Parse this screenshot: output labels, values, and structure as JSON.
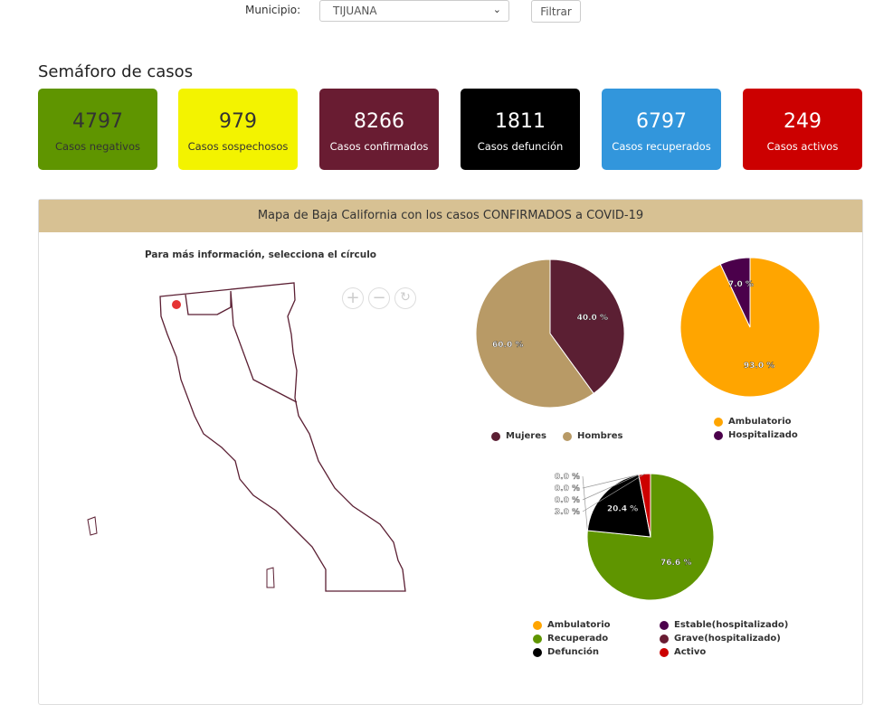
{
  "filter": {
    "label": "Municipio:",
    "value": "TIJUANA",
    "button": "Filtrar"
  },
  "section_title": "Semáforo de casos",
  "cards": [
    {
      "value": "4797",
      "label": "Casos negativos",
      "bg": "#5f9500",
      "fg": "#333"
    },
    {
      "value": "979",
      "label": "Casos sospechosos",
      "bg": "#f3f300",
      "fg": "#333"
    },
    {
      "value": "8266",
      "label": "Casos confirmados",
      "bg": "#691c32",
      "fg": "#fff"
    },
    {
      "value": "1811",
      "label": "Casos defunción",
      "bg": "#000000",
      "fg": "#fff"
    },
    {
      "value": "6797",
      "label": "Casos recuperados",
      "bg": "#3296dc",
      "fg": "#fff"
    },
    {
      "value": "249",
      "label": "Casos activos",
      "bg": "#cc0000",
      "fg": "#fff"
    }
  ],
  "panel": {
    "title": "Mapa de Baja California con los casos CONFIRMADOS a COVID-19",
    "hint": "Para más información, selecciona el círculo"
  },
  "chart_data": [
    {
      "type": "pie",
      "series": [
        {
          "name": "Mujeres",
          "value": 40.0,
          "color": "#5b1f33"
        },
        {
          "name": "Hombres",
          "value": 60.0,
          "color": "#b89a66"
        }
      ]
    },
    {
      "type": "pie",
      "series": [
        {
          "name": "Ambulatorio",
          "value": 93.0,
          "color": "#ffa500"
        },
        {
          "name": "Hospitalizado",
          "value": 7.0,
          "color": "#4b004b"
        }
      ]
    },
    {
      "type": "pie",
      "series": [
        {
          "name": "Recuperado",
          "value": 76.6,
          "color": "#5f9500"
        },
        {
          "name": "Ambulatorio",
          "value": 0.0,
          "color": "#ffa500"
        },
        {
          "name": "Defunción",
          "value": 20.4,
          "color": "#000000"
        },
        {
          "name": "Estable(hospitalizado)",
          "value": 0.0,
          "color": "#4b004b"
        },
        {
          "name": "Grave(hospitalizado)",
          "value": 0.0,
          "color": "#691c32"
        },
        {
          "name": "Activo",
          "value": 3.0,
          "color": "#cc0000"
        }
      ]
    }
  ]
}
